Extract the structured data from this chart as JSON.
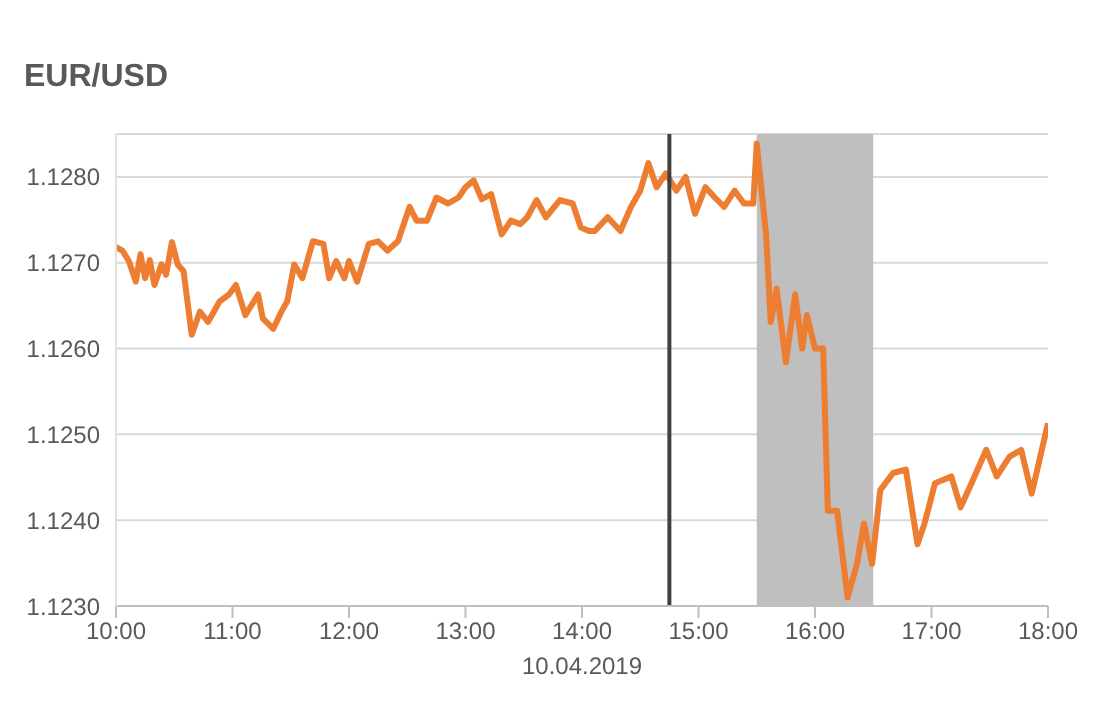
{
  "chart_data": {
    "type": "line",
    "title": "EUR/USD",
    "xlabel": "10.04.2019",
    "x": [
      10.0,
      10.056,
      10.11,
      10.17,
      10.21,
      10.25,
      10.29,
      10.33,
      10.39,
      10.43,
      10.48,
      10.53,
      10.58,
      10.65,
      10.72,
      10.79,
      10.89,
      10.97,
      11.03,
      11.11,
      11.22,
      11.26,
      11.35,
      11.42,
      11.47,
      11.53,
      11.6,
      11.69,
      11.78,
      11.83,
      11.89,
      11.96,
      12.0,
      12.07,
      12.17,
      12.25,
      12.33,
      12.42,
      12.52,
      12.58,
      12.67,
      12.75,
      12.85,
      12.94,
      13.0,
      13.07,
      13.14,
      13.22,
      13.31,
      13.39,
      13.47,
      13.53,
      13.61,
      13.69,
      13.81,
      13.92,
      13.99,
      14.06,
      14.11,
      14.22,
      14.33,
      14.42,
      14.5,
      14.57,
      14.64,
      14.72,
      14.81,
      14.89,
      14.97,
      15.06,
      15.14,
      15.22,
      15.31,
      15.39,
      15.47,
      15.5,
      15.58,
      15.62,
      15.67,
      15.75,
      15.83,
      15.89,
      15.93,
      16.0,
      16.07,
      16.11,
      16.19,
      16.28,
      16.36,
      16.42,
      16.49,
      16.56,
      16.67,
      16.78,
      16.88,
      16.94,
      17.03,
      17.17,
      17.25,
      17.33,
      17.47,
      17.56,
      17.67,
      17.77,
      17.86,
      17.92,
      18.0
    ],
    "series": [
      {
        "color": "#ed7d31",
        "values": [
          1.12718,
          1.12714,
          1.12702,
          1.12678,
          1.1271,
          1.12682,
          1.12703,
          1.12674,
          1.12698,
          1.12686,
          1.12724,
          1.12698,
          1.1269,
          1.12616,
          1.12643,
          1.12631,
          1.12655,
          1.12663,
          1.12674,
          1.12639,
          1.12663,
          1.12635,
          1.12623,
          1.12643,
          1.12655,
          1.12698,
          1.12682,
          1.12725,
          1.12722,
          1.12682,
          1.12702,
          1.12682,
          1.12702,
          1.12678,
          1.12722,
          1.12725,
          1.12714,
          1.12725,
          1.12765,
          1.12749,
          1.12749,
          1.12776,
          1.12769,
          1.12776,
          1.12788,
          1.12796,
          1.12774,
          1.1278,
          1.12733,
          1.12749,
          1.12745,
          1.12753,
          1.12773,
          1.12753,
          1.12773,
          1.12769,
          1.12741,
          1.12737,
          1.12737,
          1.12753,
          1.12737,
          1.12765,
          1.12784,
          1.12816,
          1.12788,
          1.12804,
          1.12784,
          1.128,
          1.12757,
          1.12788,
          1.12776,
          1.12765,
          1.12784,
          1.12769,
          1.12769,
          1.12839,
          1.12733,
          1.12631,
          1.1267,
          1.12584,
          1.12663,
          1.126,
          1.12639,
          1.126,
          1.126,
          1.12411,
          1.12411,
          1.1231,
          1.12349,
          1.12396,
          1.12349,
          1.12435,
          1.12455,
          1.12459,
          1.12372,
          1.12396,
          1.12443,
          1.12451,
          1.12415,
          1.12439,
          1.12482,
          1.12451,
          1.12474,
          1.12482,
          1.12431,
          1.12466,
          1.12513
        ]
      }
    ],
    "xlim": [
      10,
      18
    ],
    "xticks": [
      {
        "value": 10,
        "label": "10:00"
      },
      {
        "value": 11,
        "label": "11:00"
      },
      {
        "value": 12,
        "label": "12:00"
      },
      {
        "value": 13,
        "label": "13:00"
      },
      {
        "value": 14,
        "label": "14:00"
      },
      {
        "value": 15,
        "label": "15:00"
      },
      {
        "value": 16,
        "label": "16:00"
      },
      {
        "value": 17,
        "label": "17:00"
      },
      {
        "value": 18,
        "label": "18:00"
      }
    ],
    "ylim": [
      1.123,
      1.1285
    ],
    "yticks": [
      {
        "value": 1.123,
        "label": "1.1230"
      },
      {
        "value": 1.124,
        "label": "1.1240"
      },
      {
        "value": 1.125,
        "label": "1.1250"
      },
      {
        "value": 1.126,
        "label": "1.1260"
      },
      {
        "value": 1.127,
        "label": "1.1270"
      },
      {
        "value": 1.128,
        "label": "1.1280"
      }
    ],
    "grid": "y",
    "ref_lines": [
      {
        "axis": "x",
        "value": 14.75,
        "color": "#404040"
      }
    ],
    "bands": [
      {
        "axis": "x",
        "from": 15.5,
        "to": 16.5,
        "color": "#bfbfbf"
      }
    ]
  }
}
